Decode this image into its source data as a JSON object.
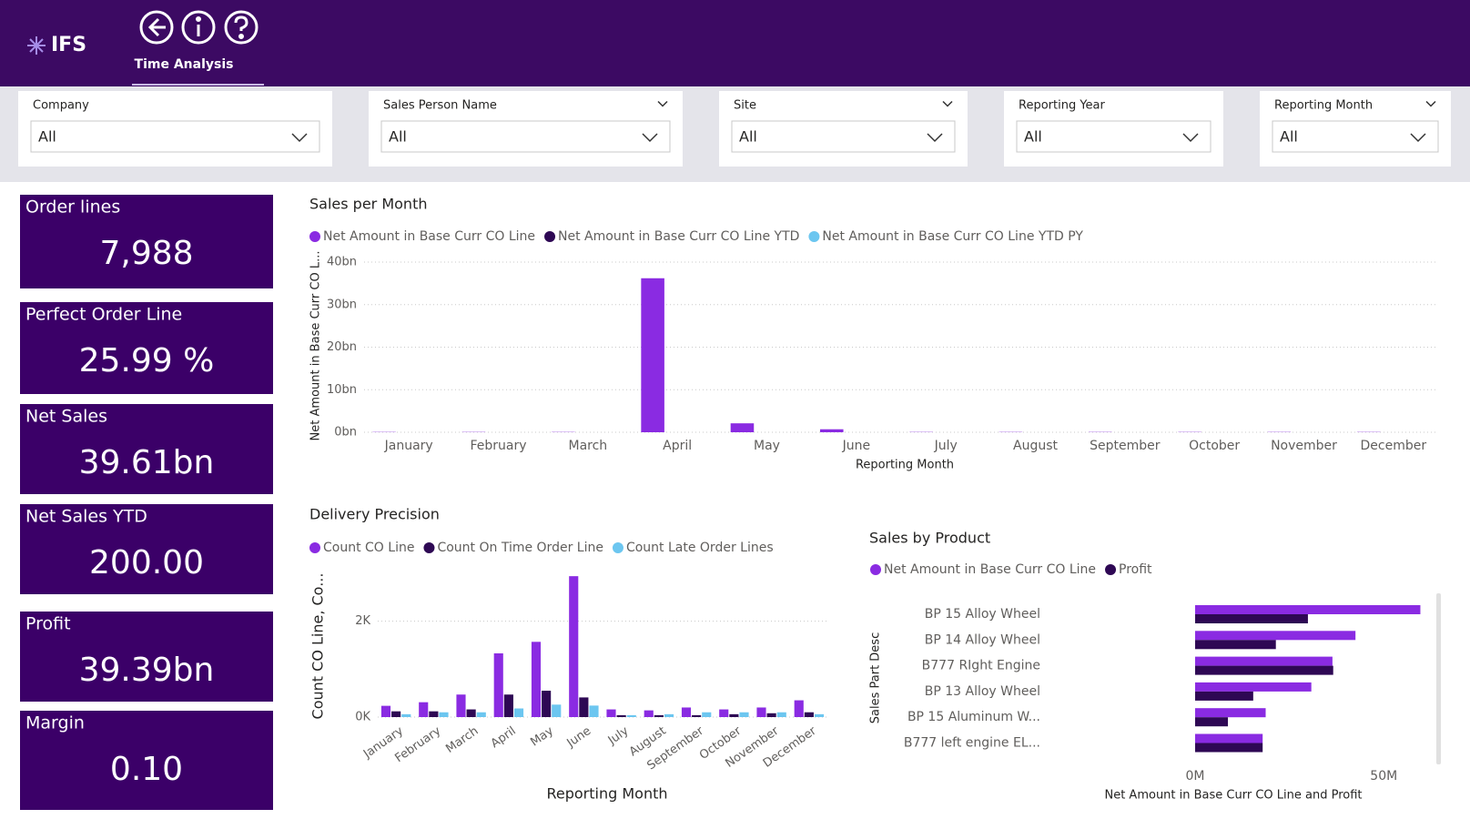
{
  "header": {
    "logo": "IFS",
    "page_title": "Time Analysis"
  },
  "filters": [
    {
      "label": "Company",
      "value": "All"
    },
    {
      "label": "Sales Person Name",
      "value": "All"
    },
    {
      "label": "Site",
      "value": "All"
    },
    {
      "label": "Reporting Year",
      "value": "All"
    },
    {
      "label": "Reporting Month",
      "value": "All"
    }
  ],
  "kpis": [
    {
      "label": "Order lines",
      "value": "7,988"
    },
    {
      "label": "Perfect Order Line",
      "value": "25.99 %"
    },
    {
      "label": "Net Sales",
      "value": "39.61bn"
    },
    {
      "label": "Net Sales YTD",
      "value": "200.00"
    },
    {
      "label": "Profit",
      "value": "39.39bn"
    },
    {
      "label": "Margin",
      "value": "0.10"
    }
  ],
  "chart_data": [
    {
      "type": "bar",
      "title": "Sales per Month",
      "x_label": "Reporting Month",
      "y_label": "Net Amount in Base Curr CO L...",
      "categories": [
        "January",
        "February",
        "March",
        "April",
        "May",
        "June",
        "July",
        "August",
        "September",
        "October",
        "November",
        "December"
      ],
      "series": [
        {
          "name": "Net Amount in Base Curr CO Line",
          "color": "#8a2be2",
          "values": [
            0.06,
            0.06,
            0.06,
            36.2,
            2.1,
            0.7,
            0.06,
            0.06,
            0.06,
            0.06,
            0.06,
            0.06
          ]
        },
        {
          "name": "Net Amount in Base Curr CO Line YTD",
          "color": "#2e0854",
          "values": [
            0,
            0,
            0,
            0,
            0,
            0,
            0,
            0,
            0,
            0,
            0,
            0
          ]
        },
        {
          "name": "Net Amount in Base Curr CO Line YTD PY",
          "color": "#6cc6f0",
          "values": [
            0,
            0,
            0,
            0,
            0,
            0,
            0,
            0,
            0,
            0,
            0,
            0
          ]
        }
      ],
      "ylim": [
        0,
        40
      ],
      "yticks": [
        {
          "value": 0,
          "label": "0bn"
        },
        {
          "value": 10,
          "label": "10bn"
        },
        {
          "value": 20,
          "label": "20bn"
        },
        {
          "value": 30,
          "label": "30bn"
        },
        {
          "value": 40,
          "label": "40bn"
        }
      ],
      "grid": true
    },
    {
      "type": "bar",
      "title": "Delivery Precision",
      "x_label": "Reporting Month",
      "y_label": "Count CO Line, Co...",
      "categories": [
        "January",
        "February",
        "March",
        "April",
        "May",
        "June",
        "July",
        "August",
        "September",
        "October",
        "November",
        "December"
      ],
      "series": [
        {
          "name": "Count CO Line",
          "color": "#8a2be2",
          "values": [
            235,
            310,
            470,
            1330,
            1570,
            2940,
            160,
            140,
            200,
            160,
            200,
            350
          ]
        },
        {
          "name": "Count On Time Order Line",
          "color": "#2e0854",
          "values": [
            120,
            120,
            160,
            470,
            550,
            410,
            40,
            40,
            40,
            60,
            80,
            100
          ]
        },
        {
          "name": "Count Late Order Lines",
          "color": "#6cc6f0",
          "values": [
            60,
            100,
            100,
            180,
            260,
            240,
            40,
            60,
            100,
            100,
            100,
            60
          ]
        }
      ],
      "ylim": [
        0,
        3000
      ],
      "yticks": [
        {
          "value": 0,
          "label": "0K"
        },
        {
          "value": 2000,
          "label": "2K"
        }
      ],
      "grid": true
    },
    {
      "type": "hbar",
      "title": "Sales by Product",
      "x_label": "Net Amount in Base Curr CO Line and Profit",
      "y_label": "Sales Part Desc",
      "categories": [
        "BP 15 Alloy Wheel",
        "BP 14 Alloy Wheel",
        "B777 RIght Engine",
        "BP 13 Alloy Wheel",
        "BP 15 Aluminum W...",
        "B777 left engine EL..."
      ],
      "series": [
        {
          "name": "Net Amount in Base Curr CO Line",
          "color": "#8a2be2",
          "values": [
            59.7,
            42.5,
            36.4,
            30.8,
            18.7,
            17.9
          ]
        },
        {
          "name": "Profit",
          "color": "#2e0854",
          "values": [
            29.9,
            21.4,
            36.6,
            15.4,
            8.7,
            17.9
          ]
        }
      ],
      "xlim": [
        0,
        62
      ],
      "xticks": [
        {
          "value": 0,
          "label": "0M"
        },
        {
          "value": 50,
          "label": "50M"
        }
      ],
      "grid": false
    }
  ]
}
